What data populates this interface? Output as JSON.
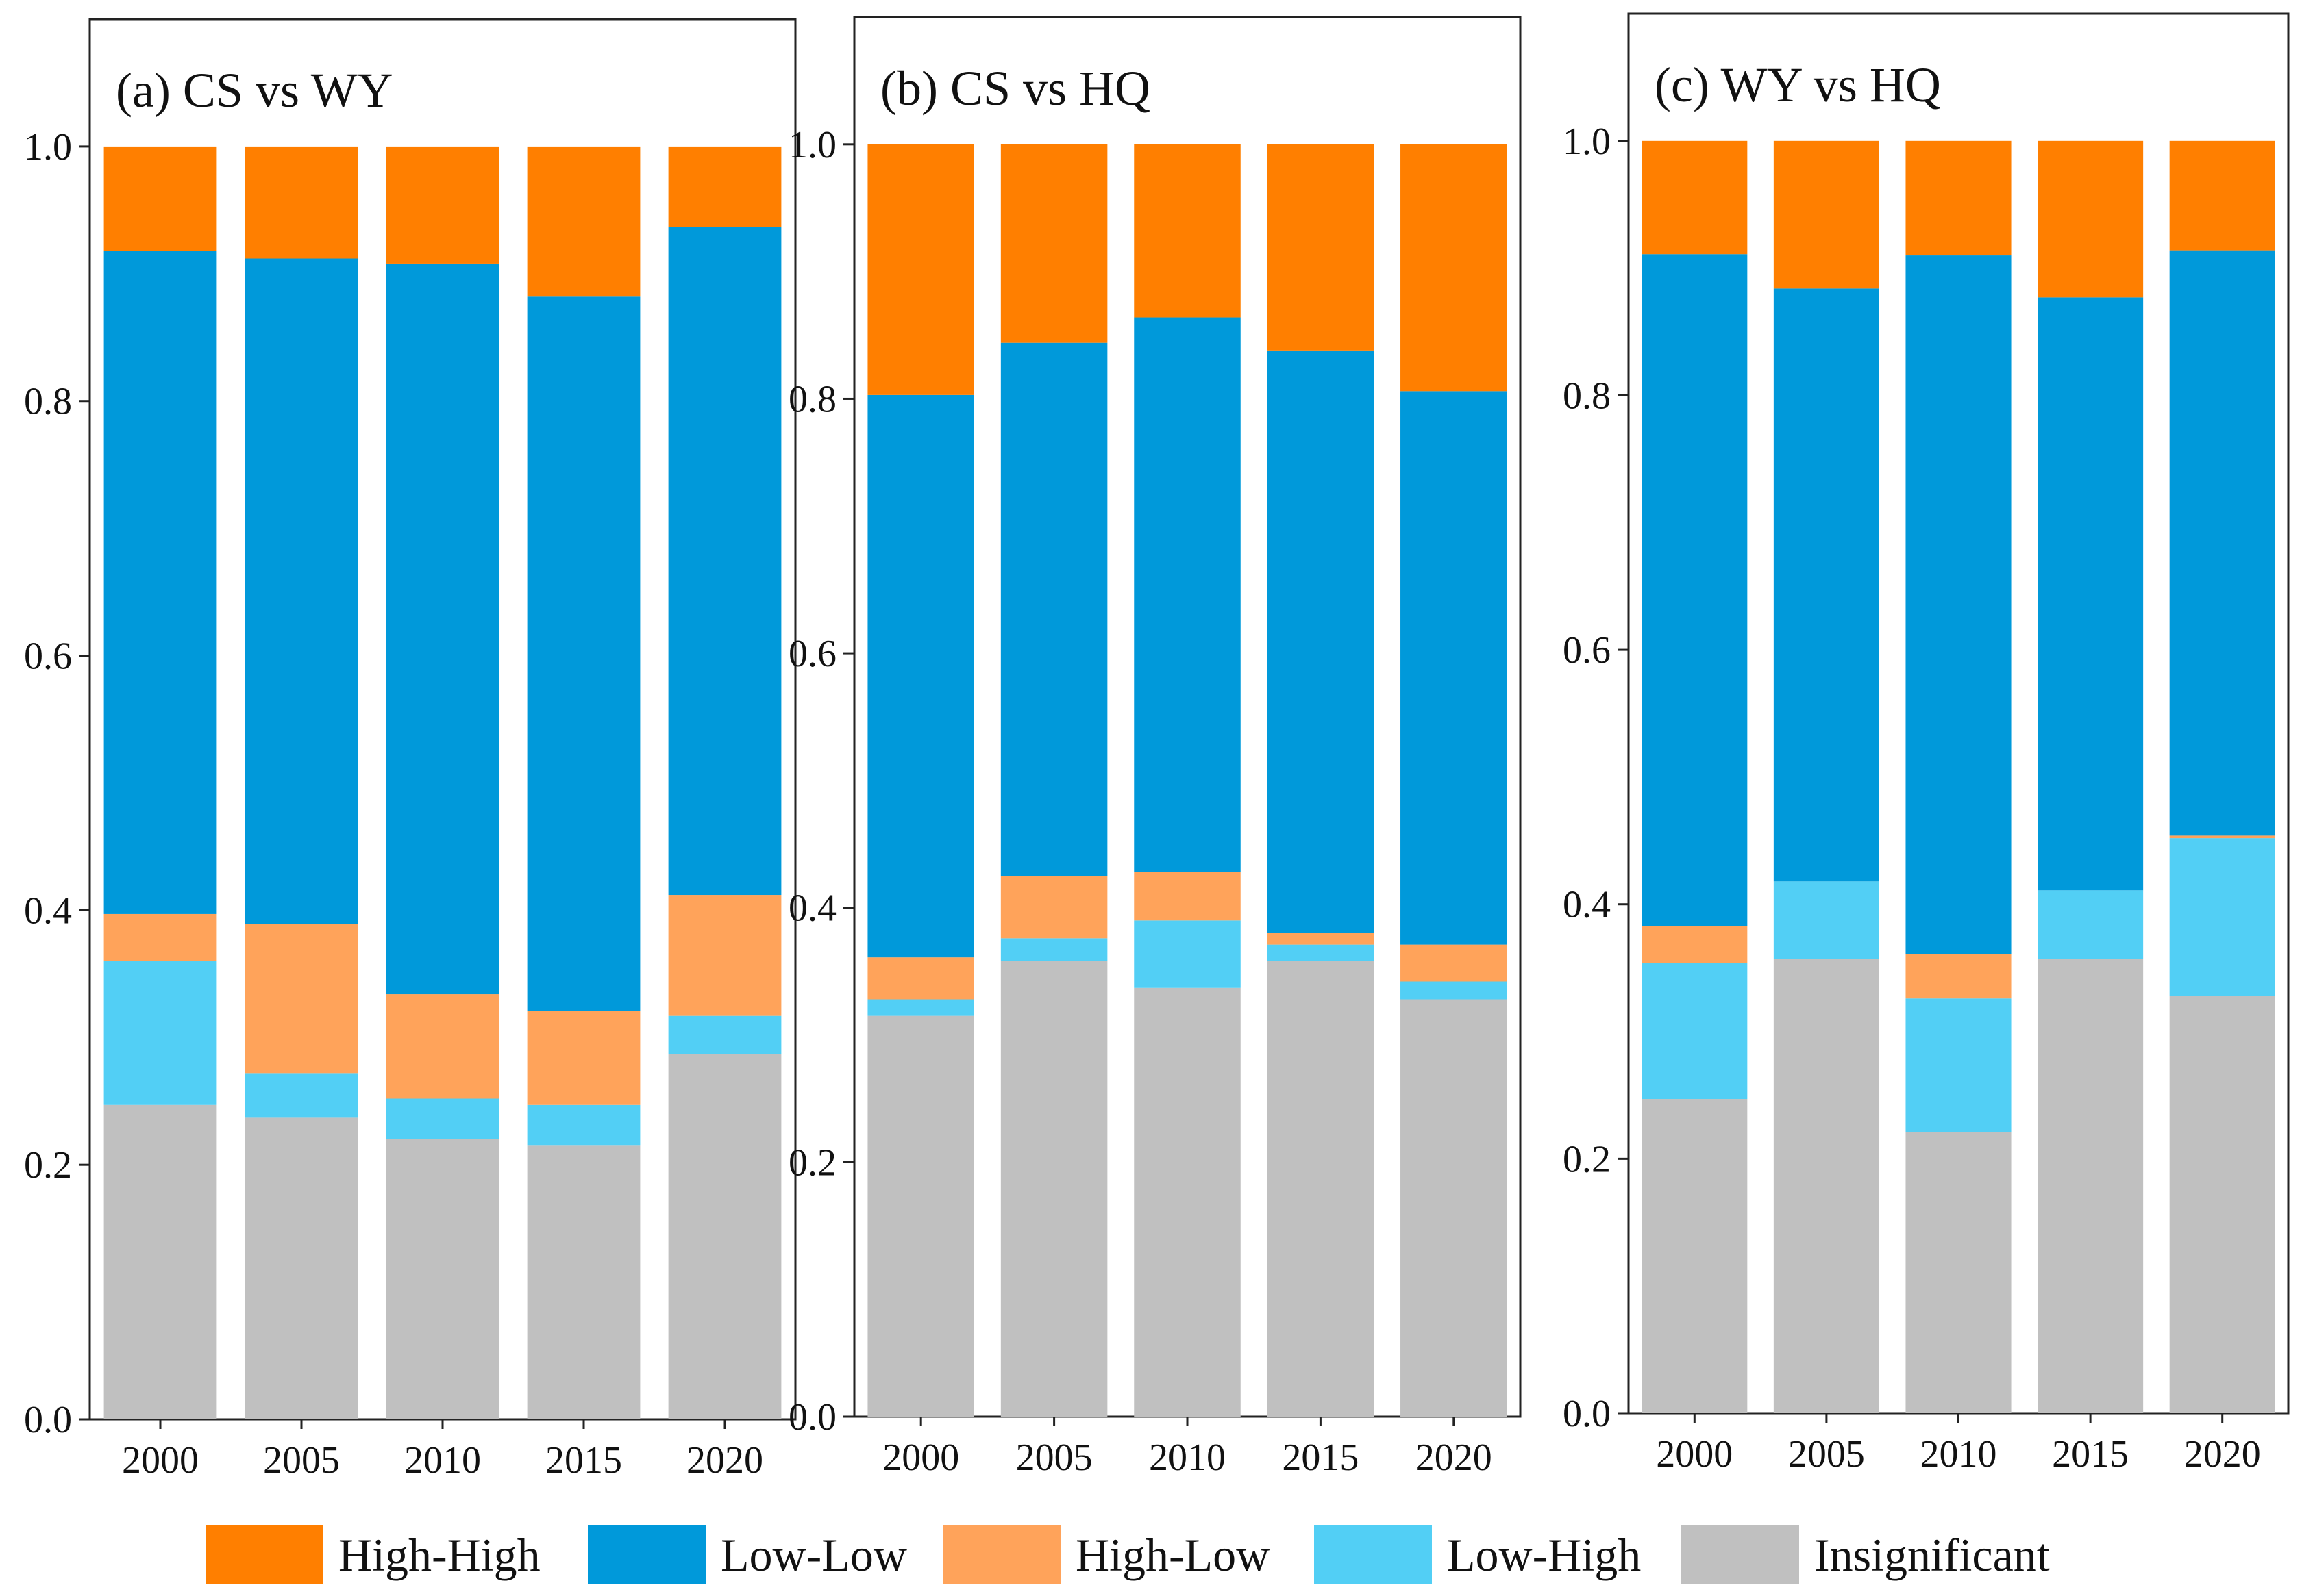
{
  "legend": {
    "items": [
      {
        "key": "high_high",
        "label": "High-High",
        "color": "#FF7F00"
      },
      {
        "key": "low_low",
        "label": "Low-Low",
        "color": "#0099DA"
      },
      {
        "key": "high_low",
        "label": "High-Low",
        "color": "#FFA35A"
      },
      {
        "key": "low_high",
        "label": "Low-High",
        "color": "#52CFF5"
      },
      {
        "key": "insignificant",
        "label": "Insignificant",
        "color": "#C0C0C0"
      }
    ]
  },
  "chart_data": [
    {
      "type": "bar",
      "stacked": true,
      "title": "(a) CS vs WY",
      "categories": [
        "2000",
        "2005",
        "2010",
        "2015",
        "2020"
      ],
      "ylim": [
        0.0,
        1.1
      ],
      "yticks": [
        "0.0",
        "0.2",
        "0.4",
        "0.6",
        "0.8",
        "1.0"
      ],
      "series": [
        {
          "name": "Insignificant",
          "values": [
            0.247,
            0.237,
            0.22,
            0.215,
            0.287
          ]
        },
        {
          "name": "Low-High",
          "values": [
            0.113,
            0.035,
            0.032,
            0.032,
            0.03
          ]
        },
        {
          "name": "High-Low",
          "values": [
            0.037,
            0.117,
            0.082,
            0.074,
            0.095
          ]
        },
        {
          "name": "Low-Low",
          "values": [
            0.521,
            0.523,
            0.574,
            0.561,
            0.525
          ]
        },
        {
          "name": "High-High",
          "values": [
            0.082,
            0.088,
            0.092,
            0.118,
            0.063
          ]
        }
      ]
    },
    {
      "type": "bar",
      "stacked": true,
      "title": "(b) CS vs HQ",
      "categories": [
        "2000",
        "2005",
        "2010",
        "2015",
        "2020"
      ],
      "ylim": [
        0.0,
        1.1
      ],
      "yticks": [
        "0.0",
        "0.2",
        "0.4",
        "0.6",
        "0.8",
        "1.0"
      ],
      "series": [
        {
          "name": "Insignificant",
          "values": [
            0.315,
            0.358,
            0.337,
            0.358,
            0.328
          ]
        },
        {
          "name": "Low-High",
          "values": [
            0.013,
            0.018,
            0.053,
            0.013,
            0.014
          ]
        },
        {
          "name": "High-Low",
          "values": [
            0.033,
            0.049,
            0.038,
            0.009,
            0.029
          ]
        },
        {
          "name": "Low-Low",
          "values": [
            0.442,
            0.419,
            0.436,
            0.458,
            0.435
          ]
        },
        {
          "name": "High-High",
          "values": [
            0.197,
            0.156,
            0.136,
            0.162,
            0.194
          ]
        }
      ]
    },
    {
      "type": "bar",
      "stacked": true,
      "title": "(c) WY vs HQ",
      "categories": [
        "2000",
        "2005",
        "2010",
        "2015",
        "2020"
      ],
      "ylim": [
        0.0,
        1.1
      ],
      "yticks": [
        "0.0",
        "0.2",
        "0.4",
        "0.6",
        "0.8",
        "1.0"
      ],
      "series": [
        {
          "name": "Insignificant",
          "values": [
            0.247,
            0.357,
            0.221,
            0.357,
            0.328
          ]
        },
        {
          "name": "Low-High",
          "values": [
            0.107,
            0.061,
            0.105,
            0.054,
            0.124
          ]
        },
        {
          "name": "High-Low",
          "values": [
            0.029,
            0.0,
            0.035,
            0.0,
            0.002
          ]
        },
        {
          "name": "Low-Low",
          "values": [
            0.528,
            0.466,
            0.549,
            0.466,
            0.46
          ]
        },
        {
          "name": "High-High",
          "values": [
            0.089,
            0.116,
            0.09,
            0.123,
            0.086
          ]
        }
      ]
    }
  ]
}
